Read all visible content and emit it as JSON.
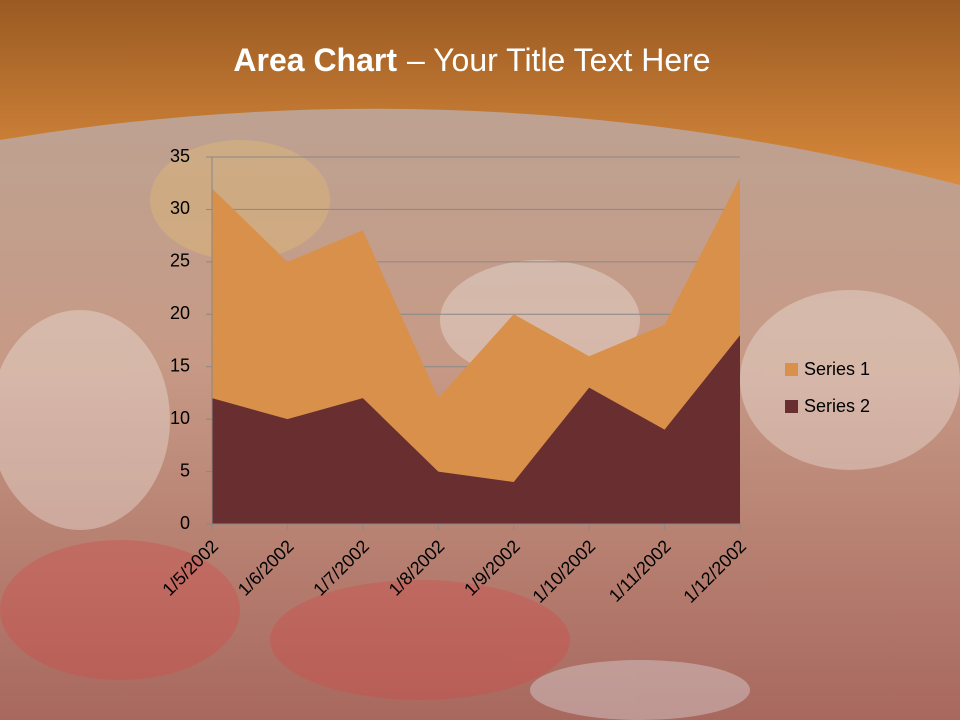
{
  "chart_data": {
    "type": "area",
    "title": {
      "bold": "Area Chart",
      "rest": "– Your Title Text Here"
    },
    "categories": [
      "1/5/2002",
      "1/6/2002",
      "1/7/2002",
      "1/8/2002",
      "1/9/2002",
      "1/10/2002",
      "1/11/2002",
      "1/12/2002"
    ],
    "series": [
      {
        "name": "Series 1",
        "color": "#d8904a",
        "values": [
          32,
          25,
          28,
          12,
          20,
          16,
          19,
          33
        ]
      },
      {
        "name": "Series 2",
        "color": "#692f30",
        "values": [
          12,
          10,
          12,
          5,
          4,
          13,
          9,
          18
        ]
      }
    ],
    "ylim": [
      0,
      35
    ],
    "yticks": [
      0,
      5,
      10,
      15,
      20,
      25,
      30,
      35
    ],
    "grid": true,
    "legend": "right"
  }
}
